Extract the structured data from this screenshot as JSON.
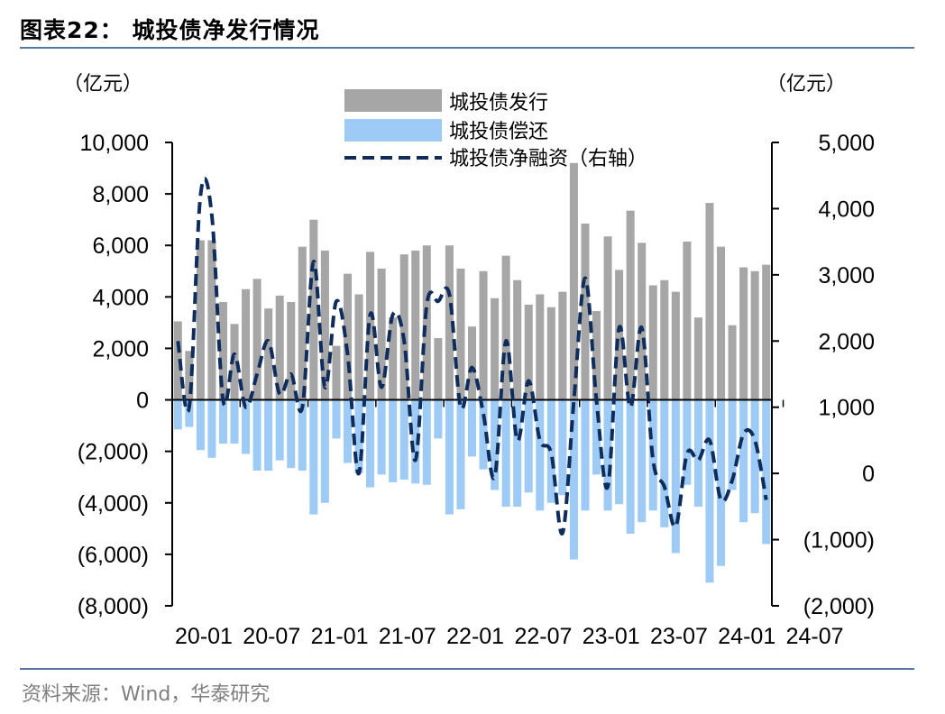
{
  "header": {
    "title": "图表22：  城投债净发行情况"
  },
  "footer": {
    "source": "资料来源：Wind，华泰研究"
  },
  "chart_data": {
    "type": "bar",
    "title": "",
    "y_left_unit": "（亿元）",
    "y_right_unit": "（亿元）",
    "y_left_range": [
      -8000,
      10000
    ],
    "y_left_ticks": [
      "10,000",
      "8,000",
      "6,000",
      "4,000",
      "2,000",
      "0",
      "(2,000)",
      "(4,000)",
      "(6,000)",
      "(8,000)"
    ],
    "y_left_tick_values": [
      10000,
      8000,
      6000,
      4000,
      2000,
      0,
      -2000,
      -4000,
      -6000,
      -8000
    ],
    "y_right_range": [
      -2000,
      5000
    ],
    "y_right_ticks": [
      "5,000",
      "4,000",
      "3,000",
      "2,000",
      "1,000",
      "0",
      "(1,000)",
      "(2,000)"
    ],
    "y_right_tick_values": [
      5000,
      4000,
      3000,
      2000,
      1000,
      0,
      -1000,
      -2000
    ],
    "x_tick_labels": [
      "20-01",
      "20-07",
      "21-01",
      "21-07",
      "22-01",
      "22-07",
      "23-01",
      "23-07",
      "24-01",
      "24-07"
    ],
    "x_tick_index": [
      0,
      6,
      12,
      18,
      24,
      30,
      36,
      42,
      48,
      54
    ],
    "legend_position": "top-center",
    "colors": {
      "issuance": "#a6a6a6",
      "repayment": "#9dcbf5",
      "net": "#0f2d5c"
    },
    "series": [
      {
        "name": "城投债发行",
        "kind": "bar",
        "axis": "left",
        "values": [
          3050,
          1900,
          6200,
          6200,
          3800,
          2950,
          4300,
          4700,
          3550,
          4050,
          3800,
          5950,
          7000,
          5800,
          2100,
          4900,
          4100,
          5750,
          5100,
          3200,
          5650,
          5800,
          6000,
          2400,
          6000,
          5100,
          2850,
          5000,
          3950,
          5600,
          4650,
          3700,
          4100,
          3600,
          4200,
          9200,
          6850,
          3450,
          6350,
          5050,
          7350,
          6100,
          4450,
          4650,
          4200,
          6150,
          3200,
          7650,
          5950,
          2900,
          5150,
          5000,
          5250
        ]
      },
      {
        "name": "城投债偿还",
        "kind": "bar",
        "axis": "left",
        "values": [
          -1150,
          -1050,
          -1950,
          -2250,
          -1700,
          -1700,
          -2100,
          -2750,
          -2750,
          -2350,
          -2650,
          -2750,
          -4450,
          -4000,
          -1500,
          -2450,
          -2850,
          -3400,
          -2900,
          -3200,
          -3100,
          -3250,
          -3300,
          -1500,
          -4450,
          -4250,
          -2200,
          -2700,
          -3500,
          -4150,
          -4150,
          -3600,
          -4300,
          -4000,
          -3700,
          -6200,
          -4300,
          -2900,
          -4300,
          -4050,
          -5200,
          -4750,
          -4300,
          -4950,
          -5950,
          -3300,
          -4150,
          -7100,
          -6450,
          -3500,
          -4750,
          -4400,
          -5600
        ]
      },
      {
        "name": "城投债净融资（右轴）",
        "kind": "line",
        "axis": "right",
        "values": [
          2000,
          1000,
          4200,
          3900,
          1100,
          1800,
          1000,
          1500,
          2000,
          1200,
          1500,
          1000,
          3200,
          1300,
          2600,
          1800,
          0,
          2400,
          1300,
          2400,
          2000,
          200,
          2550,
          2600,
          2700,
          1000,
          1600,
          900,
          -50,
          2000,
          500,
          1400,
          500,
          300,
          -900,
          1100,
          2950,
          1100,
          -200,
          2200,
          1000,
          2200,
          200,
          -200,
          -800,
          300,
          200,
          500,
          -400,
          -100,
          600,
          500,
          -400
        ]
      }
    ]
  }
}
